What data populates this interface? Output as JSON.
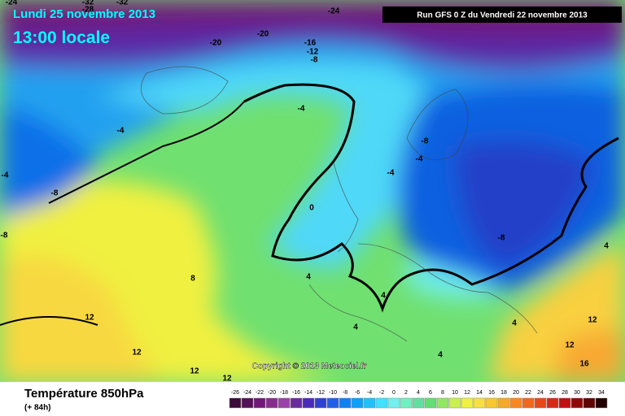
{
  "header": {
    "date": "Lundi 25 novembre 2013",
    "time": "13:00 locale",
    "run": "Run GFS 0 Z du Vendredi 22 novembre 2013"
  },
  "footer": {
    "title": "Température 850hPa",
    "lead": "(+ 84h)",
    "copyright": "Copyright © 2013 Meteociel.fr"
  },
  "legend": {
    "ticks": [
      "-26",
      "-24",
      "-22",
      "-20",
      "-18",
      "-16",
      "-14",
      "-12",
      "-10",
      "-8",
      "-6",
      "-4",
      "-2",
      "0",
      "2",
      "4",
      "6",
      "8",
      "10",
      "12",
      "14",
      "16",
      "18",
      "20",
      "22",
      "24",
      "26",
      "28",
      "30",
      "32",
      "34"
    ],
    "colors": [
      "#3a0a3a",
      "#55105a",
      "#701878",
      "#8a2a90",
      "#9a40a8",
      "#6a2aa0",
      "#4a2ab8",
      "#3040d0",
      "#2060e8",
      "#1080f0",
      "#10a0f8",
      "#20c0ff",
      "#40e0ff",
      "#70f0f0",
      "#70f0c0",
      "#60e0a0",
      "#60e070",
      "#90e860",
      "#c8f050",
      "#f0f040",
      "#f8e040",
      "#f8c830",
      "#f8a828",
      "#f88820",
      "#f06818",
      "#e84818",
      "#d82818",
      "#c01010",
      "#900808",
      "#600404",
      "#200000"
    ]
  },
  "contour_labels": [
    "-24",
    "-32",
    "-28",
    "-32",
    "-24",
    "-20",
    "-20",
    "-16",
    "-12",
    "-8",
    "-4",
    "-4",
    "-4",
    "-8",
    "-8",
    "-8",
    "-4",
    "-4",
    "0",
    "-8",
    "4",
    "8",
    "4",
    "4",
    "4",
    "4",
    "4",
    "12",
    "12",
    "12",
    "12",
    "12",
    "12",
    "16"
  ]
}
